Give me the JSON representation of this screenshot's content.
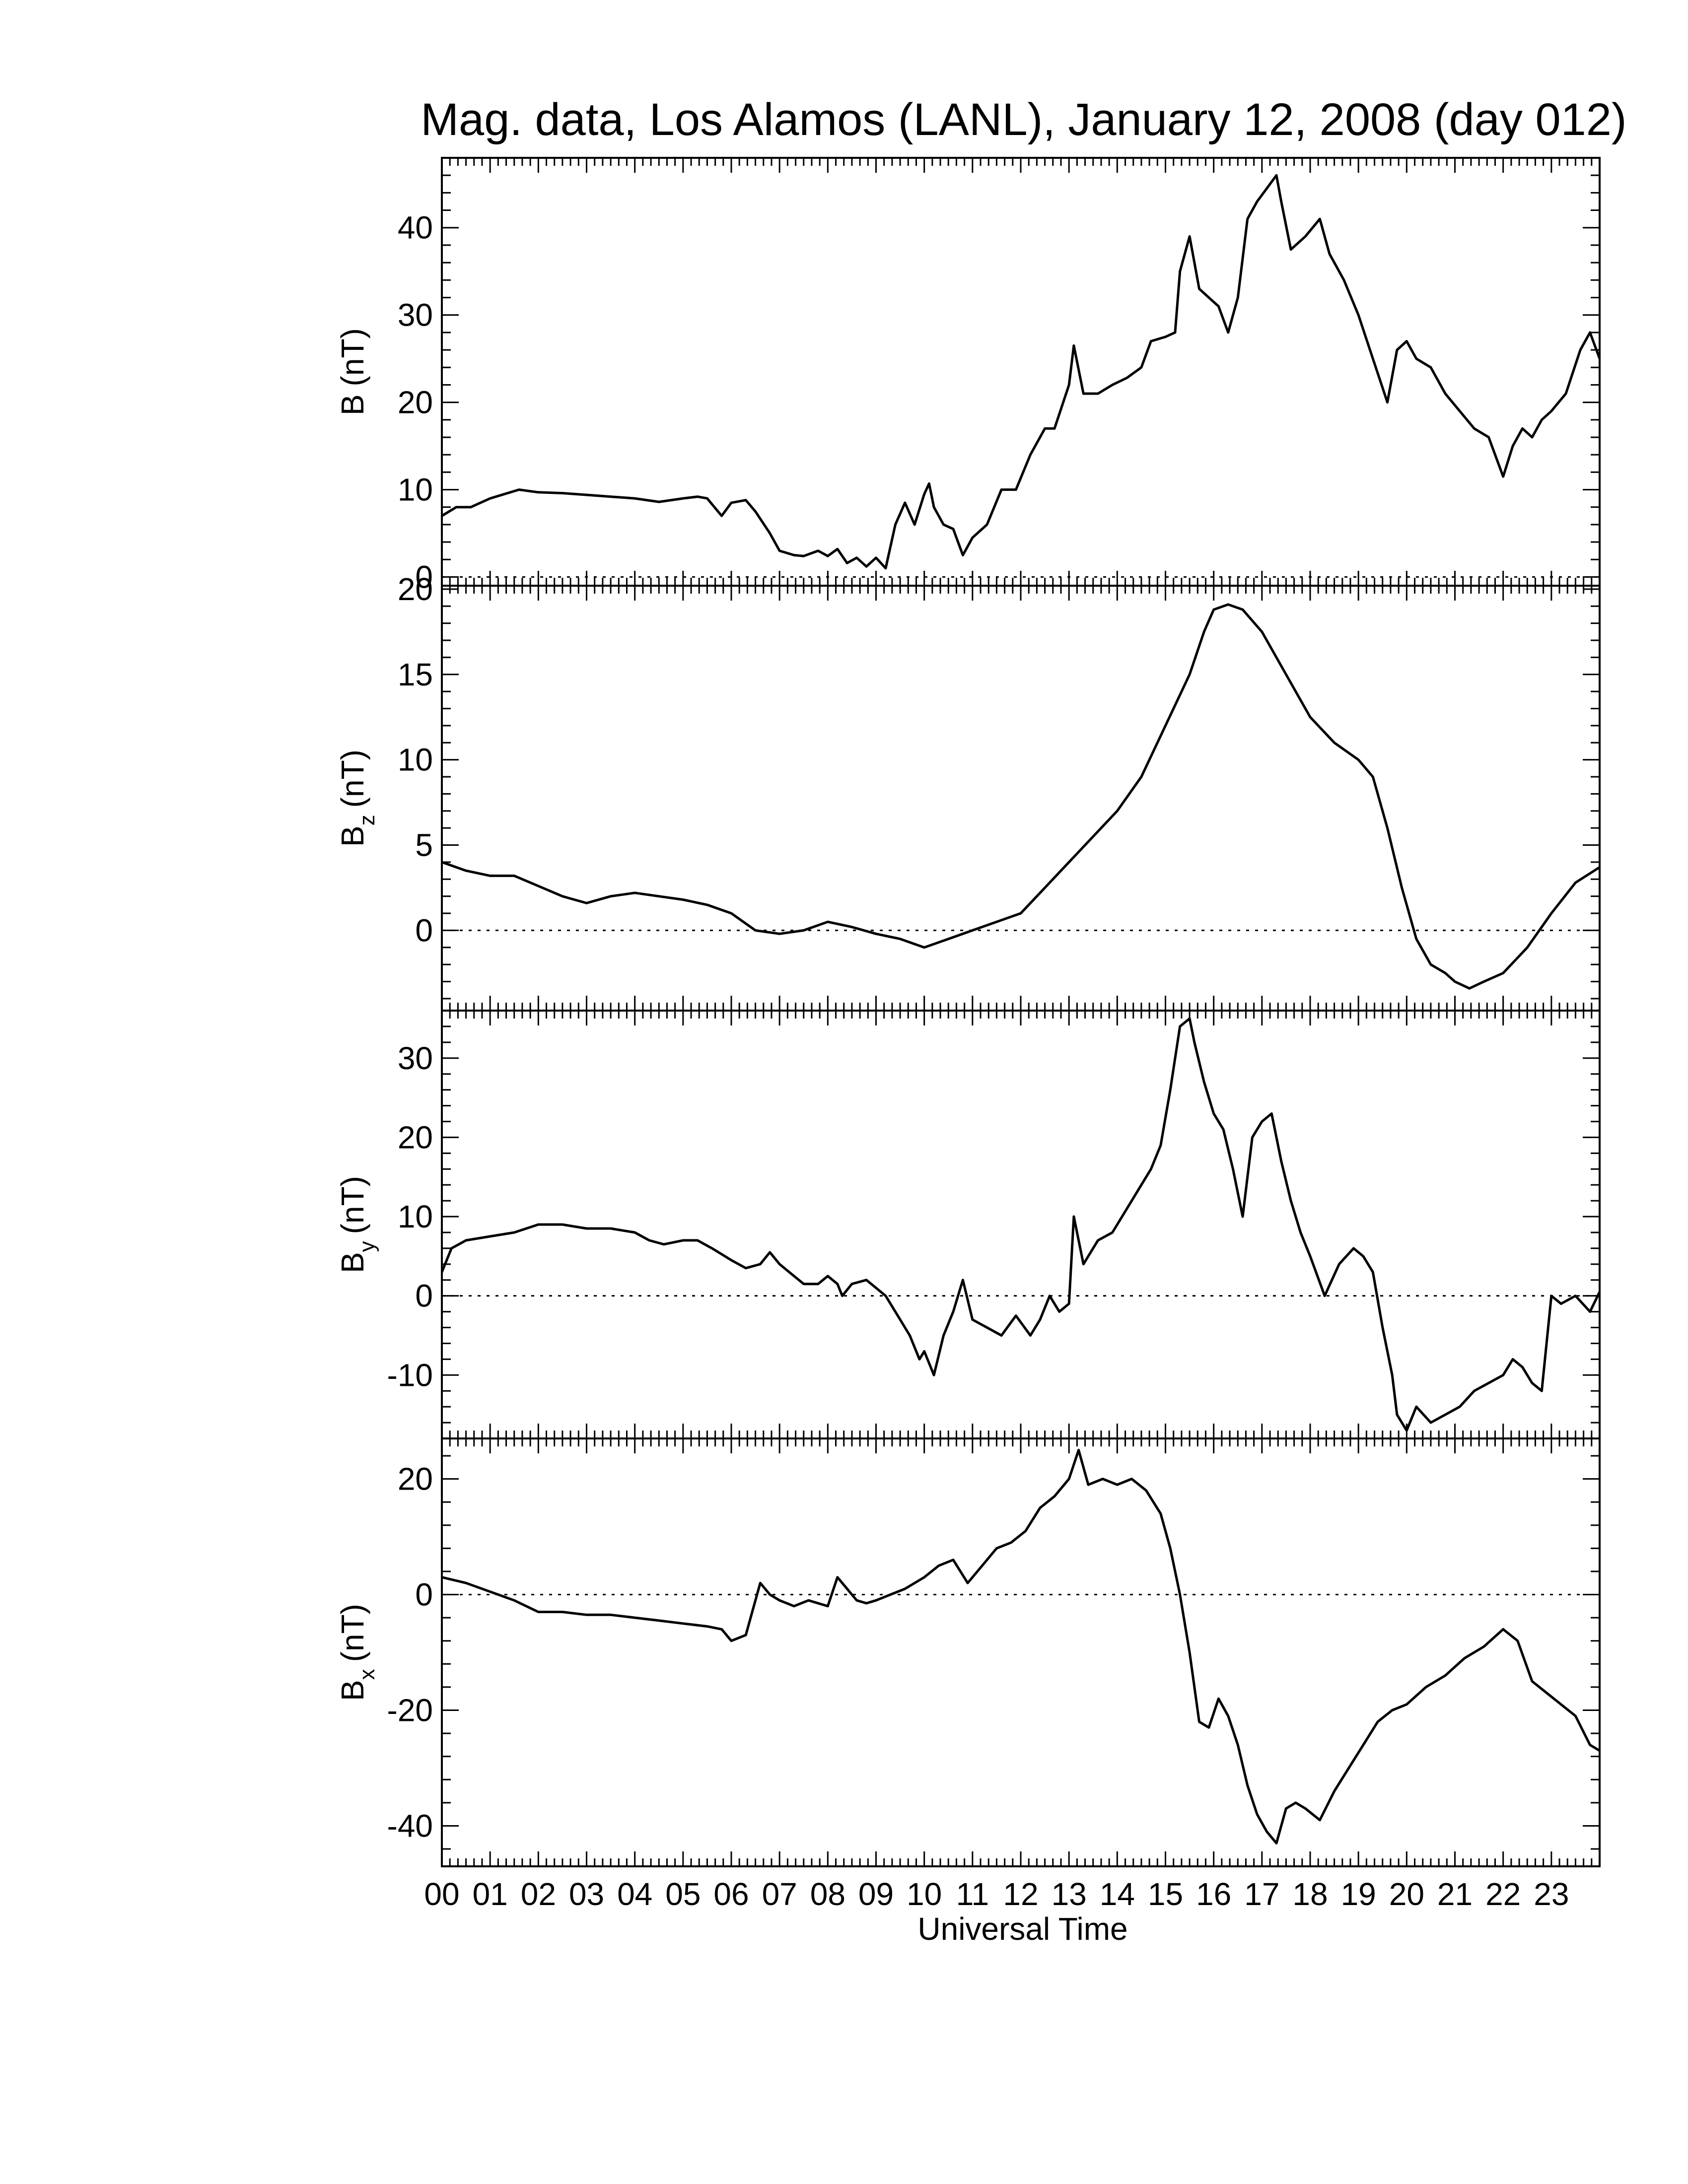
{
  "title": "Mag. data, Los Alamos (LANL), January 12, 2008 (day 012)",
  "xlabel": "Universal Time",
  "x_tick_labels": [
    "00",
    "01",
    "02",
    "03",
    "04",
    "05",
    "06",
    "07",
    "08",
    "09",
    "10",
    "11",
    "12",
    "13",
    "14",
    "15",
    "16",
    "17",
    "18",
    "19",
    "20",
    "21",
    "22",
    "23"
  ],
  "colors": {
    "trace": "#000000",
    "zero_line": "#000000",
    "background": "#ffffff"
  },
  "chart_data": [
    {
      "type": "line",
      "id": "B",
      "ylabel_main": "B",
      "ylabel_sub": "",
      "ylabel_unit": "(nT)",
      "ylim": [
        -1,
        48
      ],
      "yticks": [
        0,
        10,
        20,
        30,
        40
      ],
      "zero_line": true,
      "xlim": [
        0,
        24
      ],
      "series": [
        {
          "x": [
            0,
            0.3,
            0.6,
            1,
            1.3,
            1.6,
            2,
            2.5,
            3,
            3.5,
            4,
            4.5,
            5,
            5.3,
            5.5,
            5.8,
            6,
            6.3,
            6.5,
            6.8,
            7,
            7.3,
            7.5,
            7.8,
            8,
            8.2,
            8.4,
            8.6,
            8.8,
            9,
            9.2,
            9.4,
            9.6,
            9.8,
            10,
            10.1,
            10.2,
            10.4,
            10.6,
            10.8,
            11,
            11.3,
            11.6,
            11.9,
            12.2,
            12.5,
            12.7,
            13,
            13.1,
            13.3,
            13.6,
            13.9,
            14.2,
            14.5,
            14.7,
            15,
            15.2,
            15.3,
            15.5,
            15.7,
            15.9,
            16.1,
            16.3,
            16.5,
            16.7,
            16.9,
            17.1,
            17.3,
            17.4,
            17.6,
            17.9,
            18.2,
            18.4,
            18.7,
            19,
            19.3,
            19.6,
            19.8,
            20,
            20.2,
            20.5,
            20.8,
            21.1,
            21.4,
            21.7,
            22,
            22.2,
            22.4,
            22.6,
            22.8,
            23,
            23.3,
            23.6,
            23.8,
            24
          ],
          "y": [
            7,
            8,
            8,
            9,
            9.5,
            10,
            9.7,
            9.6,
            9.4,
            9.2,
            9,
            8.6,
            9,
            9.2,
            9,
            7,
            8.5,
            8.8,
            7.5,
            5,
            3,
            2.5,
            2.4,
            3,
            2.4,
            3.2,
            1.6,
            2.2,
            1.2,
            2.2,
            1,
            6,
            8.5,
            6,
            9.5,
            10.7,
            8,
            6,
            5.5,
            2.5,
            4.5,
            6,
            10,
            10,
            14,
            17,
            17,
            22,
            26.5,
            21,
            21,
            22,
            22.8,
            24,
            27,
            27.5,
            28,
            35,
            39,
            33,
            32,
            31,
            28,
            32,
            41,
            43,
            44.5,
            46,
            43,
            37.5,
            39,
            41,
            37,
            34,
            30,
            25,
            20,
            26,
            27,
            25,
            24,
            21,
            19,
            17,
            16,
            11.5,
            15,
            17,
            16,
            18,
            19,
            21,
            26,
            28,
            25
          ]
        }
      ]
    },
    {
      "type": "line",
      "id": "Bz",
      "ylabel_main": "B",
      "ylabel_sub": "z",
      "ylabel_unit": "(nT)",
      "ylim": [
        -4.7,
        20.2
      ],
      "yticks": [
        0,
        5,
        10,
        15,
        20
      ],
      "zero_line": true,
      "xlim": [
        0,
        24
      ],
      "series": [
        {
          "x": [
            0,
            0.5,
            1,
            1.5,
            2,
            2.5,
            3,
            3.5,
            4,
            4.5,
            5,
            5.5,
            6,
            6.5,
            7,
            7.5,
            8,
            8.5,
            9,
            9.5,
            10,
            10.5,
            11,
            11.5,
            12,
            12.5,
            13,
            13.5,
            14,
            14.5,
            15,
            15.5,
            15.8,
            16,
            16.3,
            16.6,
            17,
            17.5,
            18,
            18.5,
            19,
            19.3,
            19.6,
            19.9,
            20.2,
            20.5,
            20.8,
            21,
            21.3,
            21.6,
            22,
            22.5,
            23,
            23.5,
            24
          ],
          "y": [
            4,
            3.5,
            3.2,
            3.2,
            2.6,
            2,
            1.6,
            2,
            2.2,
            2,
            1.8,
            1.5,
            1,
            0,
            -0.2,
            0,
            0.5,
            0.2,
            -0.2,
            -0.5,
            -1,
            -0.5,
            0,
            0.5,
            1,
            2.5,
            4,
            5.5,
            7,
            9,
            12,
            15,
            17.5,
            18.8,
            19.1,
            18.8,
            17.5,
            15,
            12.5,
            11,
            10,
            9,
            6,
            2.5,
            -0.5,
            -2,
            -2.5,
            -3,
            -3.4,
            -3,
            -2.5,
            -1,
            1,
            2.8,
            3.7
          ]
        }
      ]
    },
    {
      "type": "line",
      "id": "By",
      "ylabel_main": "B",
      "ylabel_sub": "y",
      "ylabel_unit": "(nT)",
      "ylim": [
        -18,
        36
      ],
      "yticks": [
        -10,
        0,
        10,
        20,
        30
      ],
      "zero_line": true,
      "xlim": [
        0,
        24
      ],
      "series": [
        {
          "x": [
            0,
            0.2,
            0.5,
            1,
            1.5,
            2,
            2.5,
            3,
            3.5,
            4,
            4.3,
            4.6,
            5,
            5.3,
            5.6,
            6,
            6.3,
            6.6,
            6.8,
            7,
            7.2,
            7.5,
            7.8,
            8,
            8.2,
            8.3,
            8.5,
            8.8,
            9,
            9.2,
            9.5,
            9.7,
            9.9,
            10,
            10.2,
            10.4,
            10.6,
            10.8,
            11,
            11.3,
            11.6,
            11.9,
            12.2,
            12.4,
            12.6,
            12.8,
            13,
            13.1,
            13.3,
            13.6,
            13.9,
            14.2,
            14.5,
            14.7,
            14.9,
            15.1,
            15.3,
            15.5,
            15.6,
            15.8,
            16,
            16.2,
            16.4,
            16.6,
            16.8,
            17,
            17.2,
            17.4,
            17.6,
            17.8,
            18,
            18.3,
            18.6,
            18.9,
            19.1,
            19.3,
            19.5,
            19.7,
            19.8,
            20,
            20.2,
            20.5,
            20.8,
            21.1,
            21.4,
            21.7,
            22,
            22.2,
            22.4,
            22.6,
            22.8,
            23,
            23.2,
            23.5,
            23.8,
            24
          ],
          "y": [
            3,
            6,
            7,
            7.5,
            8,
            9,
            9,
            8.5,
            8.5,
            8,
            7,
            6.5,
            7,
            7,
            6,
            4.5,
            3.5,
            4,
            5.5,
            4,
            3,
            1.5,
            1.5,
            2.5,
            1.5,
            0,
            1.5,
            2,
            1,
            0,
            -3,
            -5,
            -8,
            -7,
            -10,
            -5,
            -2,
            2,
            -3,
            -4,
            -5,
            -2.5,
            -5,
            -3,
            0,
            -2,
            -1,
            10,
            4,
            7,
            8,
            11,
            14,
            16,
            19,
            26,
            34,
            35,
            32,
            27,
            23,
            21,
            16,
            10,
            20,
            22,
            23,
            17,
            12,
            8,
            5,
            0,
            4,
            6,
            5,
            3,
            -4,
            -10,
            -15,
            -17,
            -14,
            -16,
            -15,
            -14,
            -12,
            -11,
            -10,
            -8,
            -9,
            -11,
            -12,
            0,
            -1,
            0,
            -2,
            0.5
          ]
        }
      ]
    },
    {
      "type": "line",
      "id": "Bx",
      "ylabel_main": "B",
      "ylabel_sub": "x",
      "ylabel_unit": "(nT)",
      "ylim": [
        -47,
        27
      ],
      "yticks": [
        -40,
        -20,
        0,
        20
      ],
      "zero_line": true,
      "xlim": [
        0,
        24
      ],
      "series": [
        {
          "x": [
            0,
            0.5,
            1,
            1.5,
            2,
            2.5,
            3,
            3.5,
            4,
            4.5,
            5,
            5.5,
            5.8,
            6,
            6.3,
            6.6,
            6.8,
            7,
            7.3,
            7.6,
            8,
            8.2,
            8.4,
            8.6,
            8.8,
            9,
            9.3,
            9.6,
            10,
            10.3,
            10.6,
            10.9,
            11.2,
            11.5,
            11.8,
            12.1,
            12.4,
            12.7,
            13,
            13.2,
            13.4,
            13.7,
            14,
            14.3,
            14.6,
            14.9,
            15.1,
            15.3,
            15.5,
            15.7,
            15.9,
            16.1,
            16.3,
            16.5,
            16.7,
            16.9,
            17.1,
            17.3,
            17.5,
            17.7,
            17.9,
            18.2,
            18.5,
            18.8,
            19.1,
            19.4,
            19.7,
            20,
            20.4,
            20.8,
            21.2,
            21.6,
            22,
            22.3,
            22.6,
            22.9,
            23.2,
            23.5,
            23.8,
            24
          ],
          "y": [
            3,
            2,
            0.5,
            -1,
            -3,
            -3,
            -3.5,
            -3.5,
            -4,
            -4.5,
            -5,
            -5.5,
            -6,
            -8,
            -7,
            2,
            0,
            -1,
            -2,
            -1,
            -2,
            3,
            1,
            -1,
            -1.5,
            -1,
            0,
            1,
            3,
            5,
            6,
            2,
            5,
            8,
            9,
            11,
            15,
            17,
            20,
            25,
            19,
            20,
            19,
            20,
            18,
            14,
            8,
            0,
            -10,
            -22,
            -23,
            -18,
            -21,
            -26,
            -33,
            -38,
            -41,
            -43,
            -37,
            -36,
            -37,
            -39,
            -34,
            -30,
            -26,
            -22,
            -20,
            -19,
            -16,
            -14,
            -11,
            -9,
            -6,
            -8,
            -15,
            -17,
            -19,
            -21,
            -26,
            -27
          ]
        }
      ]
    }
  ]
}
